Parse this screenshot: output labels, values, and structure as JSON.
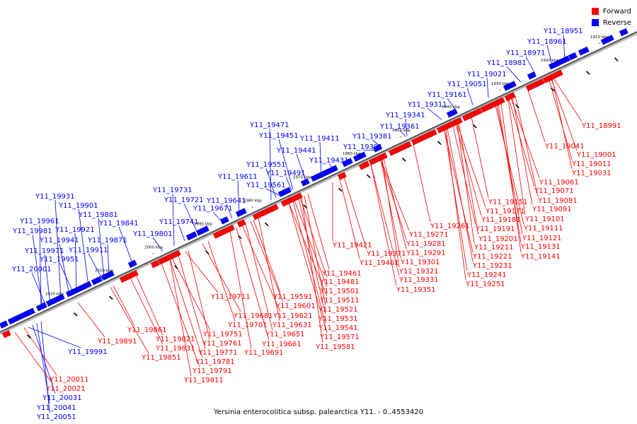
{
  "legend": {
    "forward_label": "Forward",
    "reverse_label": "Reverse",
    "forward_color": "#ff0000",
    "reverse_color": "#0000ff"
  },
  "caption": "Yersinia enterocolitica subsp. palearctica Y11. - 0..4553420",
  "axis": {
    "ticks": [
      "1910 kbp",
      "1920 kbp",
      "1930 kbp",
      "1940 kbp",
      "1950 kbp",
      "1960 kbp",
      "1970 kbp",
      "1980 kbp",
      "1990 kbp",
      "2000 kbp",
      "2010 kbp",
      "2020 kbp"
    ]
  },
  "genes": {
    "reverse_top": [
      "Y11_18951",
      "Y11_18961",
      "Y11_18971",
      "Y11_18981",
      "Y11_19021",
      "Y11_19051",
      "Y11_19161",
      "Y11_19311",
      "Y11_19341",
      "Y11_19361",
      "Y11_19381",
      "Y11_19391",
      "Y11_19411",
      "Y11_19431",
      "Y11_19441",
      "Y11_19451",
      "Y11_19471",
      "Y11_19491",
      "Y11_19551",
      "Y11_19561",
      "Y11_19611",
      "Y11_19641",
      "Y11_19671",
      "Y11_19721",
      "Y11_19731",
      "Y11_19741",
      "Y11_19801",
      "Y11_19841",
      "Y11_19871",
      "Y11_19881",
      "Y11_19901",
      "Y11_19911",
      "Y11_19921",
      "Y11_19931",
      "Y11_19941",
      "Y11_19951",
      "Y11_19961",
      "Y11_19971",
      "Y11_19981",
      "Y11_20001"
    ],
    "reverse_bottom": [
      "Y11_19991",
      "Y11_20031",
      "Y11_20041",
      "Y11_20051"
    ],
    "forward_right": [
      "Y11_18991",
      "Y11_19001",
      "Y11_19011",
      "Y11_19031",
      "Y11_19041",
      "Y11_19061",
      "Y11_19071",
      "Y11_19081",
      "Y11_19091",
      "Y11_19101",
      "Y11_19111",
      "Y11_19121",
      "Y11_19131",
      "Y11_19141",
      "Y11_19151",
      "Y11_19171",
      "Y11_19181",
      "Y11_19191",
      "Y11_19201",
      "Y11_19211",
      "Y11_19221",
      "Y11_19231",
      "Y11_19241",
      "Y11_19251",
      "Y11_19261",
      "Y11_19271",
      "Y11_19281",
      "Y11_19291",
      "Y11_19301",
      "Y11_19321",
      "Y11_19331",
      "Y11_19351",
      "Y11_19371",
      "Y11_19401",
      "Y11_19421"
    ],
    "forward_left": [
      "Y11_19461",
      "Y11_19481",
      "Y11_19501",
      "Y11_19511",
      "Y11_19521",
      "Y11_19531",
      "Y11_19541",
      "Y11_19571",
      "Y11_19581",
      "Y11_19591",
      "Y11_19601",
      "Y11_19621",
      "Y11_19631",
      "Y11_19651",
      "Y11_19661",
      "Y11_19681",
      "Y11_19691",
      "Y11_19701",
      "Y11_19711",
      "Y11_19751",
      "Y11_19761",
      "Y11_19771",
      "Y11_19781",
      "Y11_19791",
      "Y11_19811",
      "Y11_19821",
      "Y11_19831",
      "Y11_19851",
      "Y11_19861",
      "Y11_19891",
      "Y11_20011",
      "Y11_20021"
    ]
  }
}
